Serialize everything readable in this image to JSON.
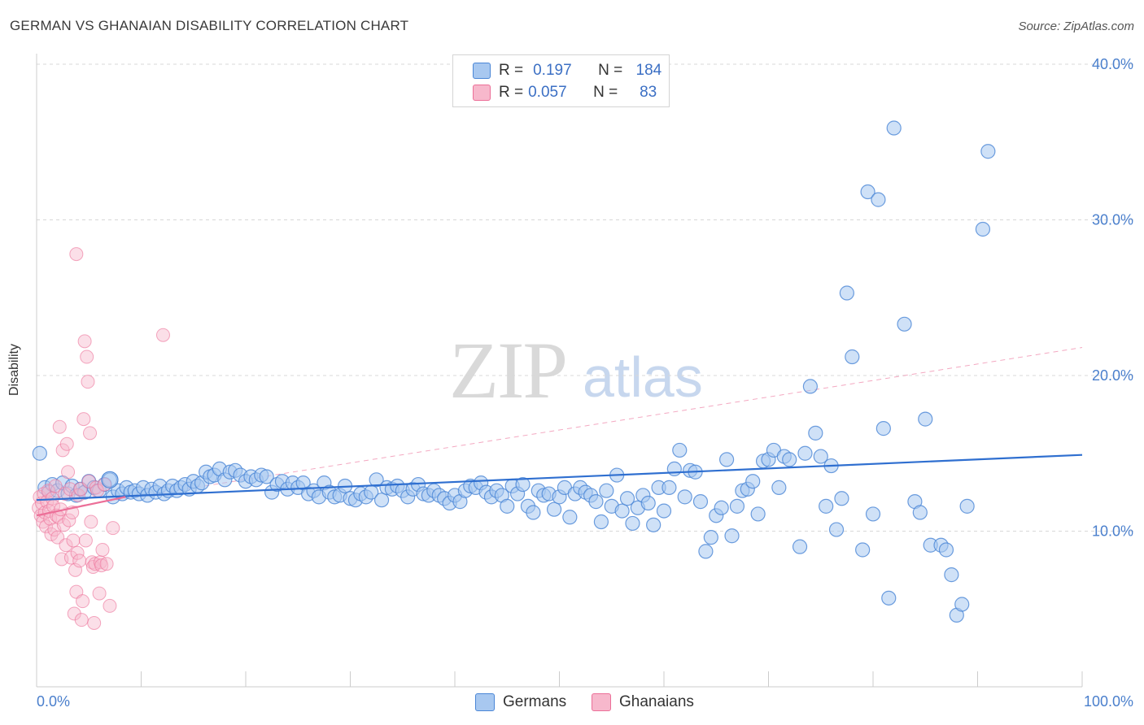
{
  "title": "GERMAN VS GHANAIAN DISABILITY CORRELATION CHART",
  "source": "Source: ZipAtlas.com",
  "watermark": {
    "zip": "ZIP",
    "atlas": "atlas"
  },
  "legend": {
    "rows": [
      {
        "r_label": "R =",
        "r_value": "0.197",
        "n_label": "N =",
        "n_value": "184",
        "color": "#a8c8f0"
      },
      {
        "r_label": "R =",
        "r_value": "0.057",
        "n_label": "N =",
        "n_value": "83",
        "color": "#f7b8cc"
      }
    ]
  },
  "bottom_legend": [
    {
      "label": "Germans",
      "color": "#a8c8f0"
    },
    {
      "label": "Ghanaians",
      "color": "#f7b8cc"
    }
  ],
  "colors": {
    "blue": "#4a86d6",
    "blue_fill": "#a8c8f0",
    "pink": "#ec6f98",
    "pink_fill": "#f7b8cc",
    "grid": "#d8d8d8",
    "axis_text": "#4a7fcc"
  },
  "chart_data": {
    "type": "scatter",
    "title": "GERMAN VS GHANAIAN DISABILITY CORRELATION CHART",
    "xlabel": "",
    "ylabel": "Disability",
    "xlim": [
      0,
      100
    ],
    "ylim": [
      0,
      40
    ],
    "x_tick_labels": [
      "0.0%",
      "100.0%"
    ],
    "y_ticks": [
      10,
      20,
      30,
      40
    ],
    "y_tick_labels": [
      "10.0%",
      "20.0%",
      "30.0%",
      "40.0%"
    ],
    "grid": "horizontal dashed",
    "legend_position": "top-center",
    "series": [
      {
        "name": "Germans",
        "color": "#4a86d6",
        "trend": {
          "x": [
            0,
            100
          ],
          "y": [
            12.0,
            14.9
          ]
        },
        "points": [
          [
            0.3,
            15.0
          ],
          [
            0.8,
            12.8
          ],
          [
            1.2,
            12.5
          ],
          [
            1.5,
            13.0
          ],
          [
            2.0,
            12.6
          ],
          [
            2.5,
            13.1
          ],
          [
            3.0,
            12.4
          ],
          [
            3.4,
            12.9
          ],
          [
            3.8,
            12.3
          ],
          [
            4.2,
            12.7
          ],
          [
            4.6,
            12.5
          ],
          [
            5.0,
            13.2
          ],
          [
            5.5,
            12.8
          ],
          [
            6.0,
            12.6
          ],
          [
            6.5,
            13.0
          ],
          [
            7.0,
            13.3
          ],
          [
            7.3,
            12.2
          ],
          [
            7.8,
            12.6
          ],
          [
            8.2,
            12.4
          ],
          [
            8.6,
            12.8
          ],
          [
            9.0,
            12.5
          ],
          [
            9.4,
            12.6
          ],
          [
            9.8,
            12.4
          ],
          [
            10.2,
            12.8
          ],
          [
            10.6,
            12.3
          ],
          [
            11.0,
            12.7
          ],
          [
            11.4,
            12.5
          ],
          [
            11.8,
            12.9
          ],
          [
            12.2,
            12.4
          ],
          [
            12.6,
            12.6
          ],
          [
            13.0,
            12.9
          ],
          [
            13.4,
            12.6
          ],
          [
            13.8,
            12.8
          ],
          [
            14.2,
            13.0
          ],
          [
            14.6,
            12.7
          ],
          [
            15.0,
            13.2
          ],
          [
            15.4,
            12.9
          ],
          [
            15.8,
            13.1
          ],
          [
            16.2,
            13.8
          ],
          [
            16.6,
            13.5
          ],
          [
            17.0,
            13.6
          ],
          [
            17.5,
            14.0
          ],
          [
            18.0,
            13.3
          ],
          [
            18.5,
            13.8
          ],
          [
            19.0,
            13.9
          ],
          [
            19.5,
            13.6
          ],
          [
            20.0,
            13.2
          ],
          [
            20.5,
            13.5
          ],
          [
            21.0,
            13.3
          ],
          [
            21.5,
            13.6
          ],
          [
            22.0,
            13.5
          ],
          [
            22.5,
            12.5
          ],
          [
            23.0,
            13.0
          ],
          [
            23.5,
            13.2
          ],
          [
            24.0,
            12.7
          ],
          [
            24.5,
            13.1
          ],
          [
            25.0,
            12.8
          ],
          [
            25.5,
            13.1
          ],
          [
            26.0,
            12.4
          ],
          [
            26.5,
            12.6
          ],
          [
            27.0,
            12.2
          ],
          [
            27.5,
            13.1
          ],
          [
            28.0,
            12.5
          ],
          [
            28.5,
            12.2
          ],
          [
            29.0,
            12.3
          ],
          [
            29.5,
            12.9
          ],
          [
            30.0,
            12.1
          ],
          [
            30.5,
            12.0
          ],
          [
            31.0,
            12.4
          ],
          [
            31.5,
            12.2
          ],
          [
            32.0,
            12.5
          ],
          [
            32.5,
            13.3
          ],
          [
            33.0,
            12.0
          ],
          [
            33.5,
            12.8
          ],
          [
            34.0,
            12.7
          ],
          [
            34.5,
            12.9
          ],
          [
            35.0,
            12.6
          ],
          [
            35.5,
            12.2
          ],
          [
            36.0,
            12.7
          ],
          [
            36.5,
            13.0
          ],
          [
            37.0,
            12.4
          ],
          [
            37.5,
            12.3
          ],
          [
            38.0,
            12.6
          ],
          [
            38.5,
            12.3
          ],
          [
            39.0,
            12.1
          ],
          [
            39.5,
            11.8
          ],
          [
            40.0,
            12.3
          ],
          [
            40.5,
            11.9
          ],
          [
            41.0,
            12.6
          ],
          [
            41.5,
            12.9
          ],
          [
            42.0,
            12.8
          ],
          [
            42.5,
            13.1
          ],
          [
            43.0,
            12.5
          ],
          [
            43.5,
            12.2
          ],
          [
            44.0,
            12.6
          ],
          [
            44.5,
            12.3
          ],
          [
            45.0,
            11.6
          ],
          [
            45.5,
            12.9
          ],
          [
            46.0,
            12.4
          ],
          [
            46.5,
            13.0
          ],
          [
            47.0,
            11.6
          ],
          [
            47.5,
            11.2
          ],
          [
            48.0,
            12.6
          ],
          [
            48.5,
            12.3
          ],
          [
            49.0,
            12.4
          ],
          [
            49.5,
            11.4
          ],
          [
            50.0,
            12.2
          ],
          [
            50.5,
            12.8
          ],
          [
            51.0,
            10.9
          ],
          [
            51.5,
            12.4
          ],
          [
            52.0,
            12.8
          ],
          [
            52.5,
            12.5
          ],
          [
            53.0,
            12.3
          ],
          [
            53.5,
            11.9
          ],
          [
            54.0,
            10.6
          ],
          [
            54.5,
            12.6
          ],
          [
            55.0,
            11.6
          ],
          [
            55.5,
            13.6
          ],
          [
            56.0,
            11.3
          ],
          [
            56.5,
            12.1
          ],
          [
            57.0,
            10.5
          ],
          [
            57.5,
            11.5
          ],
          [
            58.0,
            12.3
          ],
          [
            58.5,
            11.8
          ],
          [
            59.0,
            10.4
          ],
          [
            59.5,
            12.8
          ],
          [
            60.0,
            11.3
          ],
          [
            60.5,
            12.8
          ],
          [
            61.0,
            14.0
          ],
          [
            61.5,
            15.2
          ],
          [
            62.0,
            12.2
          ],
          [
            62.5,
            13.9
          ],
          [
            63.0,
            13.8
          ],
          [
            63.5,
            11.9
          ],
          [
            64.0,
            8.7
          ],
          [
            64.5,
            9.6
          ],
          [
            65.0,
            11.0
          ],
          [
            65.5,
            11.5
          ],
          [
            66.0,
            14.6
          ],
          [
            66.5,
            9.7
          ],
          [
            67.0,
            11.6
          ],
          [
            67.5,
            12.6
          ],
          [
            68.0,
            12.7
          ],
          [
            68.5,
            13.2
          ],
          [
            69.0,
            11.1
          ],
          [
            69.5,
            14.5
          ],
          [
            70.0,
            14.6
          ],
          [
            70.5,
            15.2
          ],
          [
            71.0,
            12.8
          ],
          [
            71.5,
            14.8
          ],
          [
            72.0,
            14.6
          ],
          [
            73.0,
            9.0
          ],
          [
            73.5,
            15.0
          ],
          [
            74.0,
            19.3
          ],
          [
            74.5,
            16.3
          ],
          [
            75.0,
            14.8
          ],
          [
            75.5,
            11.6
          ],
          [
            76.0,
            14.2
          ],
          [
            76.5,
            10.1
          ],
          [
            77.0,
            12.1
          ],
          [
            77.5,
            25.3
          ],
          [
            78.0,
            21.2
          ],
          [
            79.0,
            8.8
          ],
          [
            79.5,
            31.8
          ],
          [
            80.0,
            11.1
          ],
          [
            80.5,
            31.3
          ],
          [
            81.0,
            16.6
          ],
          [
            81.5,
            5.7
          ],
          [
            82.0,
            35.9
          ],
          [
            83.0,
            23.3
          ],
          [
            84.0,
            11.9
          ],
          [
            84.5,
            11.2
          ],
          [
            85.0,
            17.2
          ],
          [
            85.5,
            9.1
          ],
          [
            86.5,
            9.1
          ],
          [
            87.0,
            8.8
          ],
          [
            87.5,
            7.2
          ],
          [
            88.0,
            4.6
          ],
          [
            88.5,
            5.3
          ],
          [
            89.0,
            11.6
          ],
          [
            90.5,
            29.4
          ],
          [
            91.0,
            34.4
          ]
        ]
      },
      {
        "name": "Ghanaians",
        "color": "#ec6f98",
        "trend": {
          "x": [
            0,
            8.5
          ],
          "y": [
            11.0,
            12.2
          ]
        },
        "trend_extended": {
          "x": [
            0,
            100
          ],
          "y": [
            11.2,
            21.8
          ]
        },
        "points": [
          [
            0.2,
            11.5
          ],
          [
            0.3,
            12.2
          ],
          [
            0.4,
            11.0
          ],
          [
            0.5,
            11.8
          ],
          [
            0.6,
            10.6
          ],
          [
            0.7,
            12.4
          ],
          [
            0.8,
            11.2
          ],
          [
            0.9,
            10.3
          ],
          [
            1.0,
            11.9
          ],
          [
            1.1,
            12.6
          ],
          [
            1.2,
            11.3
          ],
          [
            1.3,
            10.8
          ],
          [
            1.4,
            9.8
          ],
          [
            1.5,
            12.1
          ],
          [
            1.6,
            11.6
          ],
          [
            1.7,
            10.1
          ],
          [
            1.8,
            12.9
          ],
          [
            1.9,
            11.0
          ],
          [
            2.0,
            9.6
          ],
          [
            2.1,
            10.9
          ],
          [
            2.2,
            16.7
          ],
          [
            2.3,
            11.4
          ],
          [
            2.4,
            8.2
          ],
          [
            2.5,
            15.2
          ],
          [
            2.6,
            10.4
          ],
          [
            2.7,
            12.4
          ],
          [
            2.8,
            9.1
          ],
          [
            2.9,
            15.6
          ],
          [
            3.0,
            13.8
          ],
          [
            3.1,
            10.7
          ],
          [
            3.2,
            12.7
          ],
          [
            3.3,
            8.3
          ],
          [
            3.4,
            11.2
          ],
          [
            3.5,
            9.4
          ],
          [
            3.6,
            4.7
          ],
          [
            3.7,
            7.5
          ],
          [
            3.8,
            6.1
          ],
          [
            3.9,
            8.6
          ],
          [
            4.0,
            12.3
          ],
          [
            4.1,
            8.1
          ],
          [
            4.2,
            12.7
          ],
          [
            4.3,
            4.3
          ],
          [
            4.4,
            5.5
          ],
          [
            4.5,
            17.2
          ],
          [
            4.6,
            22.2
          ],
          [
            4.7,
            9.4
          ],
          [
            4.8,
            21.2
          ],
          [
            4.9,
            19.6
          ],
          [
            5.0,
            13.2
          ],
          [
            5.1,
            16.3
          ],
          [
            5.2,
            10.6
          ],
          [
            5.3,
            8.0
          ],
          [
            5.4,
            7.7
          ],
          [
            5.5,
            4.1
          ],
          [
            5.6,
            7.9
          ],
          [
            5.7,
            12.8
          ],
          [
            5.8,
            12.6
          ],
          [
            6.0,
            6.0
          ],
          [
            6.1,
            8.0
          ],
          [
            6.2,
            7.8
          ],
          [
            6.3,
            8.8
          ],
          [
            6.5,
            13.0
          ],
          [
            6.7,
            7.9
          ],
          [
            7.0,
            5.2
          ],
          [
            7.3,
            10.2
          ],
          [
            3.8,
            27.8
          ],
          [
            12.1,
            22.6
          ]
        ]
      }
    ]
  }
}
